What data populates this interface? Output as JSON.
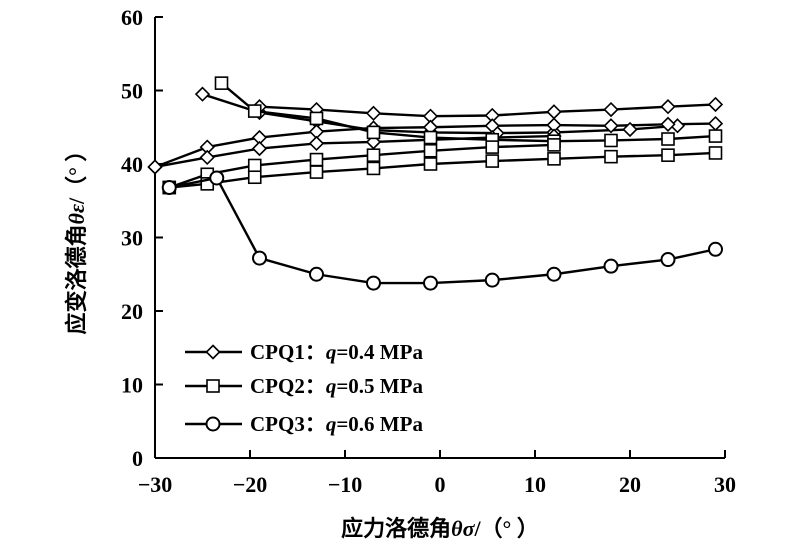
{
  "chart_data": {
    "type": "line",
    "xlabel_prefix": "应力洛德角",
    "xlabel_symbol": "θσ",
    "xlabel_unit": "/（°  ）",
    "ylabel_prefix": "应变洛德角",
    "ylabel_symbol": "θε",
    "ylabel_unit": "/（°  ）",
    "xlim": [
      -30,
      30
    ],
    "ylim": [
      0,
      60
    ],
    "xticks": [
      -30,
      -20,
      -10,
      0,
      10,
      20,
      30
    ],
    "yticks": [
      0,
      10,
      20,
      30,
      40,
      50,
      60
    ],
    "xtick_labels": [
      "−30",
      "−20",
      "−10",
      "0",
      "10",
      "20",
      "30"
    ],
    "ytick_labels": [
      "0",
      "10",
      "20",
      "30",
      "40",
      "50",
      "60"
    ],
    "grid": false,
    "legend_position": "bottom-left",
    "series": [
      {
        "name": "CPQ1：q=0.4 MPa",
        "label_prefix": "CPQ1：",
        "label_q": "q",
        "label_value": "=0.4 MPa",
        "marker": "diamond",
        "paths": [
          [
            [
              -25,
              49.5
            ],
            [
              -19,
              47.0
            ],
            [
              -13,
              45.8
            ],
            [
              -7,
              44.6
            ],
            [
              -1,
              44.3
            ],
            [
              6,
              44.2
            ],
            [
              12,
              44.3
            ],
            [
              20,
              44.7
            ],
            [
              25,
              45.2
            ]
          ],
          [
            [
              -19,
              47.8
            ],
            [
              -13,
              47.4
            ],
            [
              -7,
              46.9
            ],
            [
              -1,
              46.5
            ],
            [
              5.5,
              46.6
            ],
            [
              12,
              47.1
            ],
            [
              18,
              47.4
            ],
            [
              24,
              47.8
            ],
            [
              29,
              48.1
            ]
          ],
          [
            [
              -30,
              39.6
            ],
            [
              -24.5,
              42.3
            ],
            [
              -19,
              43.6
            ],
            [
              -13,
              44.4
            ],
            [
              -7,
              44.9
            ],
            [
              -1,
              45.0
            ],
            [
              5.5,
              45.2
            ],
            [
              12,
              45.3
            ],
            [
              18,
              45.2
            ],
            [
              24,
              45.4
            ],
            [
              29,
              45.5
            ]
          ],
          [
            [
              -30,
              39.6
            ],
            [
              -24.5,
              40.9
            ],
            [
              -19,
              42.1
            ],
            [
              -13,
              42.8
            ],
            [
              -7,
              43.0
            ],
            [
              -1,
              43.3
            ],
            [
              5.5,
              43.6
            ],
            [
              12,
              43.8
            ]
          ]
        ]
      },
      {
        "name": "CPQ2：q=0.5 MPa",
        "label_prefix": "CPQ2：",
        "label_q": "q",
        "label_value": "=0.5 MPa",
        "marker": "square",
        "paths": [
          [
            [
              -23,
              51.0
            ],
            [
              -19.5,
              47.2
            ],
            [
              -13,
              46.2
            ],
            [
              -7,
              44.3
            ],
            [
              -1,
              43.6
            ],
            [
              5.5,
              43.3
            ],
            [
              12,
              43.1
            ],
            [
              18,
              43.2
            ],
            [
              24,
              43.4
            ],
            [
              29,
              43.8
            ]
          ],
          [
            [
              -28.5,
              36.8
            ],
            [
              -24.5,
              38.6
            ],
            [
              -19.5,
              39.8
            ],
            [
              -13,
              40.6
            ],
            [
              -7,
              41.2
            ],
            [
              -1,
              41.8
            ],
            [
              5.5,
              42.3
            ],
            [
              12,
              42.6
            ]
          ],
          [
            [
              -28.5,
              36.8
            ],
            [
              -24.5,
              37.3
            ],
            [
              -19.5,
              38.2
            ],
            [
              -13,
              38.9
            ],
            [
              -7,
              39.4
            ],
            [
              -1,
              40.0
            ],
            [
              5.5,
              40.4
            ],
            [
              12,
              40.7
            ],
            [
              18,
              41.0
            ],
            [
              24,
              41.2
            ],
            [
              29,
              41.5
            ]
          ]
        ]
      },
      {
        "name": "CPQ3：q=0.6 MPa",
        "label_prefix": "CPQ3：",
        "label_q": "q",
        "label_value": "=0.6 MPa",
        "marker": "circle",
        "paths": [
          [
            [
              -28.5,
              36.8
            ],
            [
              -23.5,
              38.1
            ],
            [
              -19,
              27.2
            ],
            [
              -13,
              25.0
            ],
            [
              -7,
              23.8
            ],
            [
              -1,
              23.8
            ],
            [
              5.5,
              24.2
            ],
            [
              12,
              25.0
            ],
            [
              18,
              26.1
            ],
            [
              24,
              27.0
            ],
            [
              29,
              28.4
            ]
          ]
        ]
      }
    ]
  }
}
